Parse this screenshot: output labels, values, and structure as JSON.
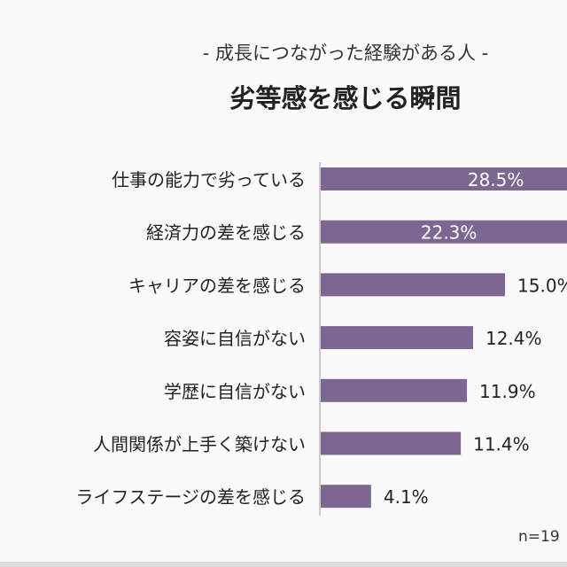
{
  "chart_data": {
    "type": "bar",
    "orientation": "horizontal",
    "subtitle": "- 成長につながった経験がある人 -",
    "title": "劣等感を感じる瞬間",
    "categories": [
      "仕事の能力で劣っている",
      "経済力の差を感じる",
      "キャリアの差を感じる",
      "容姿に自信がない",
      "学歴に自信がない",
      "人間関係が上手く築けない",
      "ライフステージの差を感じる"
    ],
    "values": [
      28.5,
      22.3,
      15.0,
      12.4,
      11.9,
      11.4,
      4.1
    ],
    "labels": [
      "28.5%",
      "22.3%",
      "15.0%",
      "12.4%",
      "11.9%",
      "11.4%",
      "4.1%"
    ],
    "unit": "%",
    "bar_color": "#7d6691",
    "grid": false,
    "note": "n=19"
  }
}
